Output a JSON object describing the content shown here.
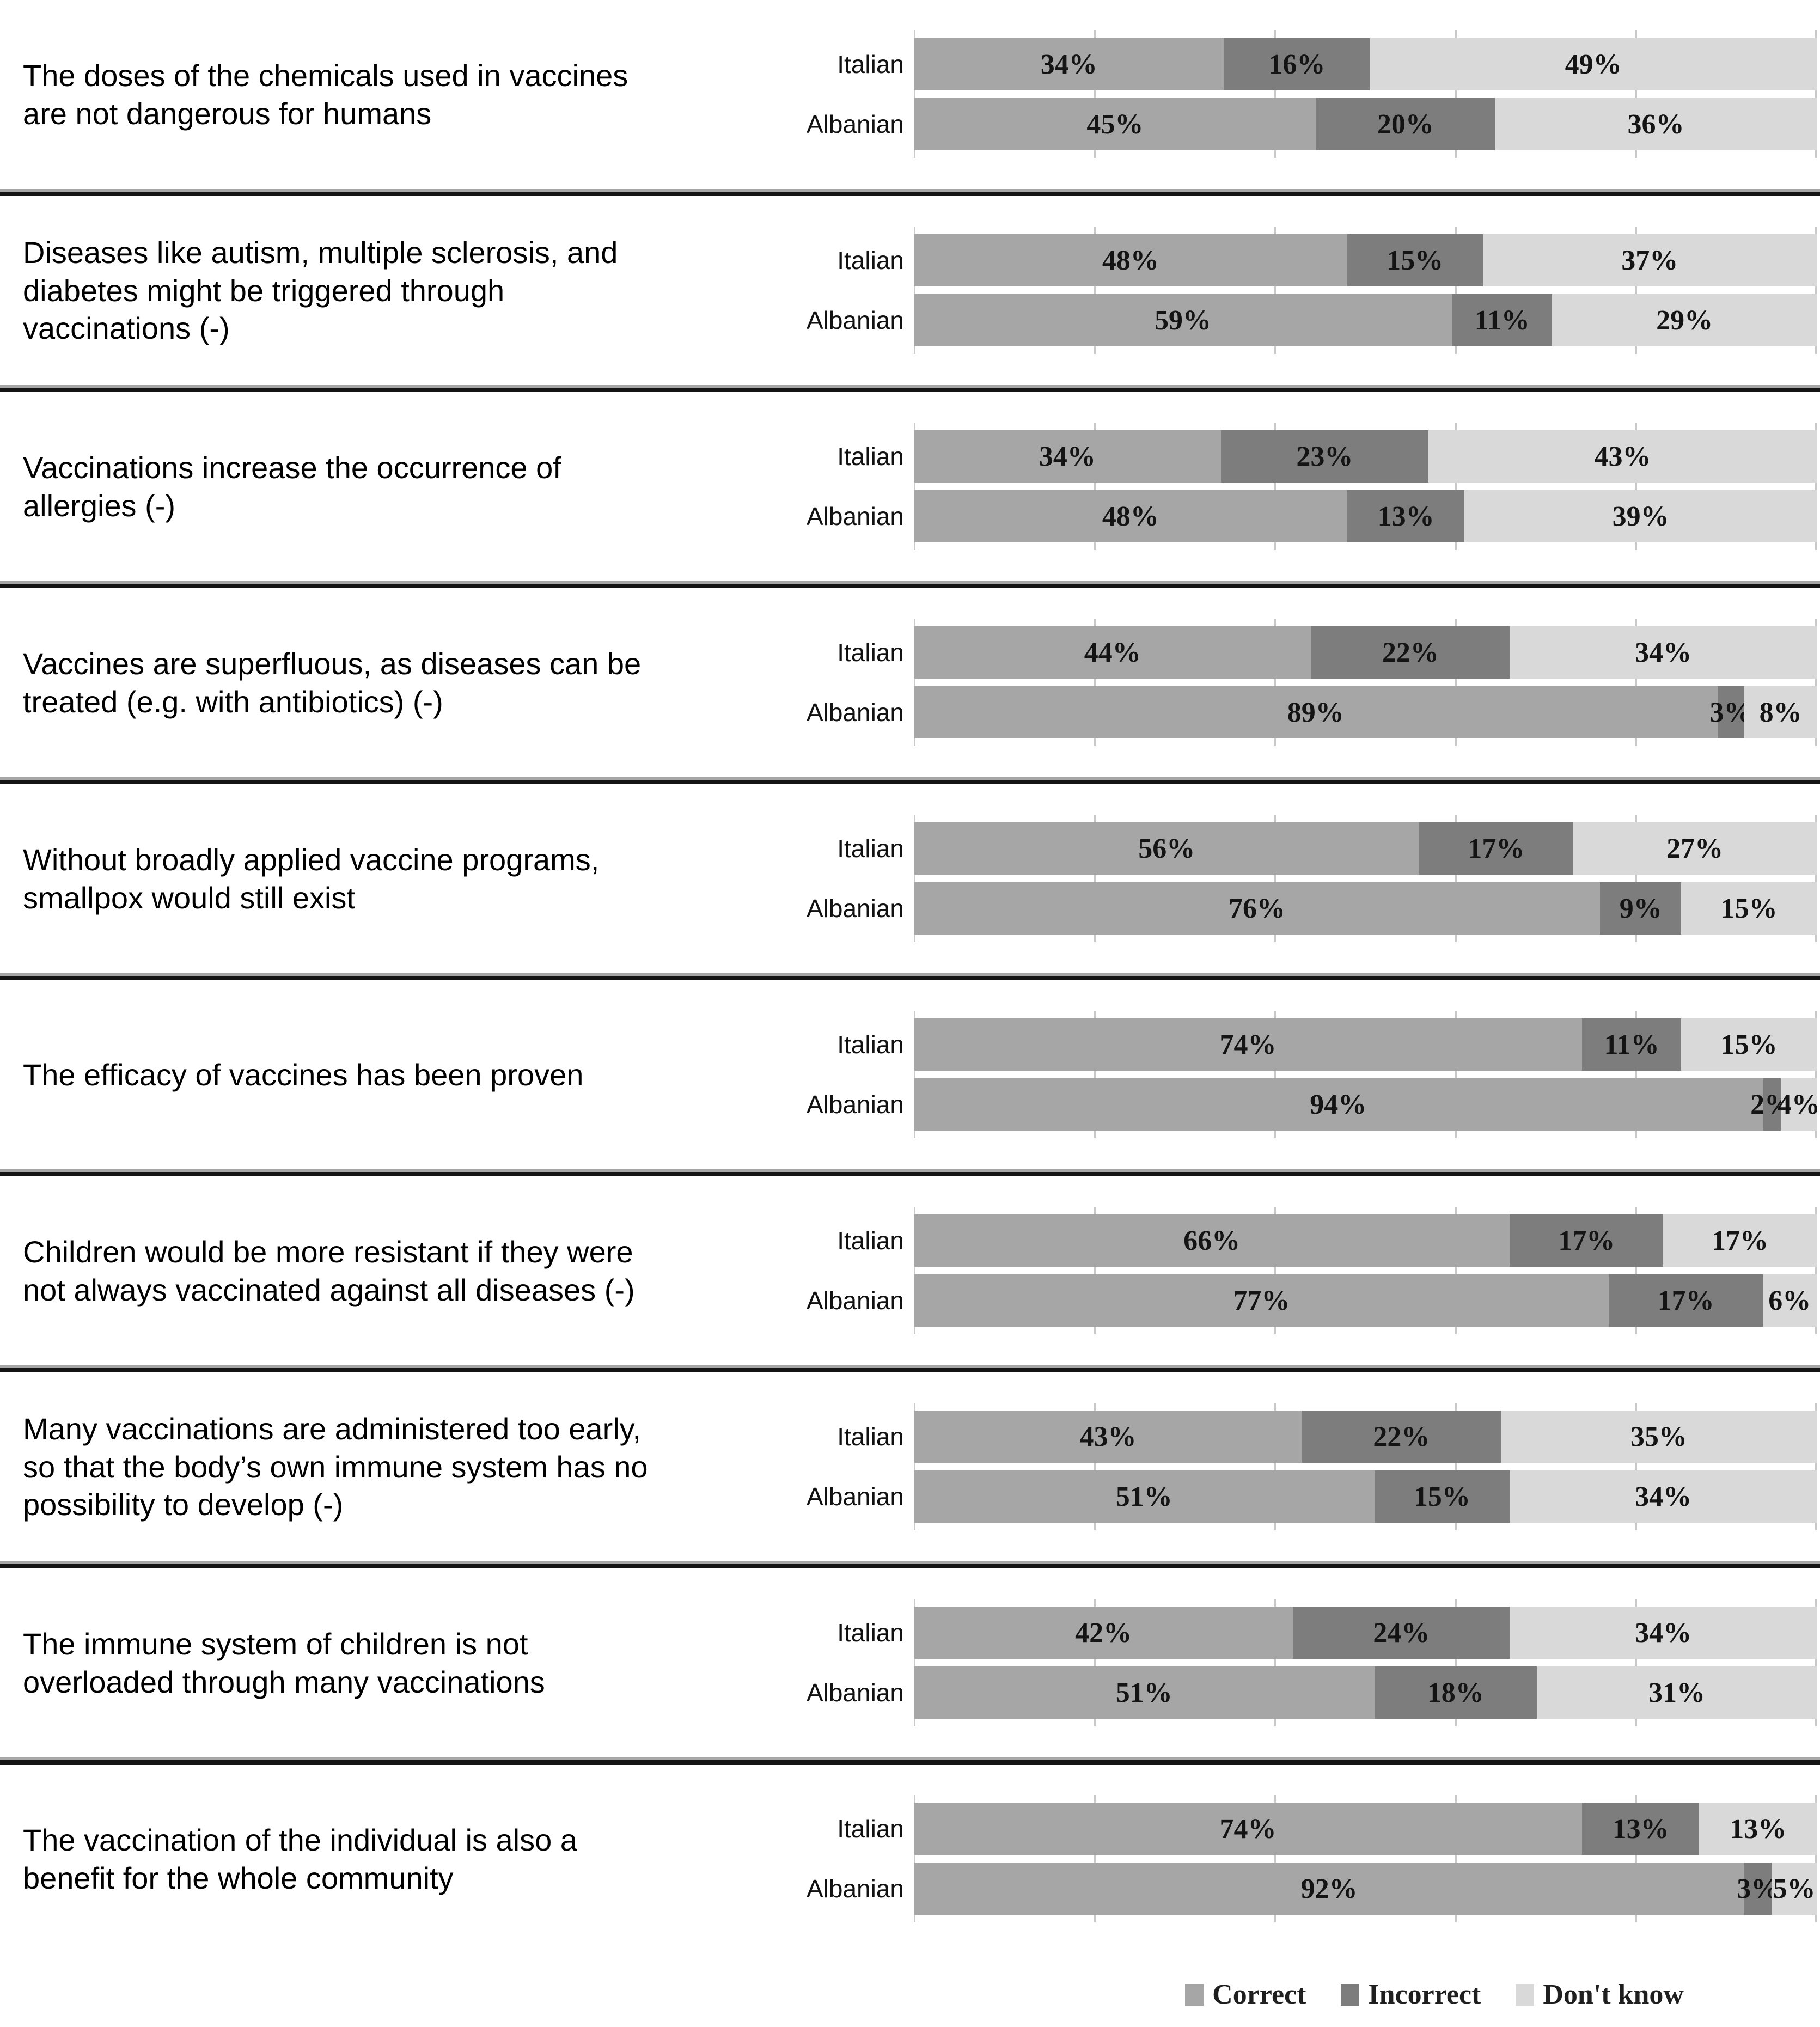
{
  "chart_data": {
    "type": "bar",
    "variant": "horizontal-100-percent-stacked",
    "title": "",
    "legend": [
      "Correct",
      "Incorrect",
      "Don't know"
    ],
    "legend_keys": [
      "correct",
      "incorrect",
      "dont-know"
    ],
    "legend_position": "bottom",
    "colors": {
      "correct": "#a6a6a6",
      "incorrect": "#7d7d7d",
      "dont_know": "#d9d9d9",
      "gridline": "#c9c9c9",
      "divider_top": "#a8a8a8",
      "divider_bottom": "#141414"
    },
    "axis": {
      "min": 0,
      "max": 100,
      "gridline_step": 20,
      "gridlines_visible": true,
      "tick_labels_visible": false
    },
    "row_labels": [
      "Italian",
      "Albanian"
    ],
    "groups": [
      {
        "statement": "The doses of the chemicals used in vaccines are not dangerous for humans",
        "series": [
          {
            "label": "Italian",
            "values": [
              34,
              16,
              49
            ]
          },
          {
            "label": "Albanian",
            "values": [
              45,
              20,
              36
            ]
          }
        ]
      },
      {
        "statement": "Diseases like autism, multiple sclerosis, and diabetes might be triggered through vaccinations (-)",
        "series": [
          {
            "label": "Italian",
            "values": [
              48,
              15,
              37
            ]
          },
          {
            "label": "Albanian",
            "values": [
              59,
              11,
              29
            ]
          }
        ]
      },
      {
        "statement": "Vaccinations increase the occurrence of allergies (-)",
        "series": [
          {
            "label": "Italian",
            "values": [
              34,
              23,
              43
            ]
          },
          {
            "label": "Albanian",
            "values": [
              48,
              13,
              39
            ]
          }
        ]
      },
      {
        "statement": "Vaccines are superfluous, as diseases can be treated (e.g. with antibiotics) (-)",
        "series": [
          {
            "label": "Italian",
            "values": [
              44,
              22,
              34
            ]
          },
          {
            "label": "Albanian",
            "values": [
              89,
              3,
              8
            ]
          }
        ]
      },
      {
        "statement": "Without broadly applied vaccine programs, smallpox would still exist",
        "series": [
          {
            "label": "Italian",
            "values": [
              56,
              17,
              27
            ]
          },
          {
            "label": "Albanian",
            "values": [
              76,
              9,
              15
            ]
          }
        ]
      },
      {
        "statement": "The efficacy of vaccines has been proven",
        "series": [
          {
            "label": "Italian",
            "values": [
              74,
              11,
              15
            ]
          },
          {
            "label": "Albanian",
            "values": [
              94,
              2,
              4
            ]
          }
        ]
      },
      {
        "statement": "Children would be more resistant if they were not always vaccinated against all diseases (-)",
        "series": [
          {
            "label": "Italian",
            "values": [
              66,
              17,
              17
            ]
          },
          {
            "label": "Albanian",
            "values": [
              77,
              17,
              6
            ]
          }
        ]
      },
      {
        "statement": "Many vaccinations are administered too early, so that the body’s own immune system has no possibility to develop (-)",
        "series": [
          {
            "label": "Italian",
            "values": [
              43,
              22,
              35
            ]
          },
          {
            "label": "Albanian",
            "values": [
              51,
              15,
              34
            ]
          }
        ]
      },
      {
        "statement": "The immune system of children is not overloaded through many vaccinations",
        "series": [
          {
            "label": "Italian",
            "values": [
              42,
              24,
              34
            ]
          },
          {
            "label": "Albanian",
            "values": [
              51,
              18,
              31
            ]
          }
        ]
      },
      {
        "statement": "The vaccination of the individual is also a benefit for the whole community",
        "series": [
          {
            "label": "Italian",
            "values": [
              74,
              13,
              13
            ]
          },
          {
            "label": "Albanian",
            "values": [
              92,
              3,
              5
            ]
          }
        ]
      }
    ]
  }
}
